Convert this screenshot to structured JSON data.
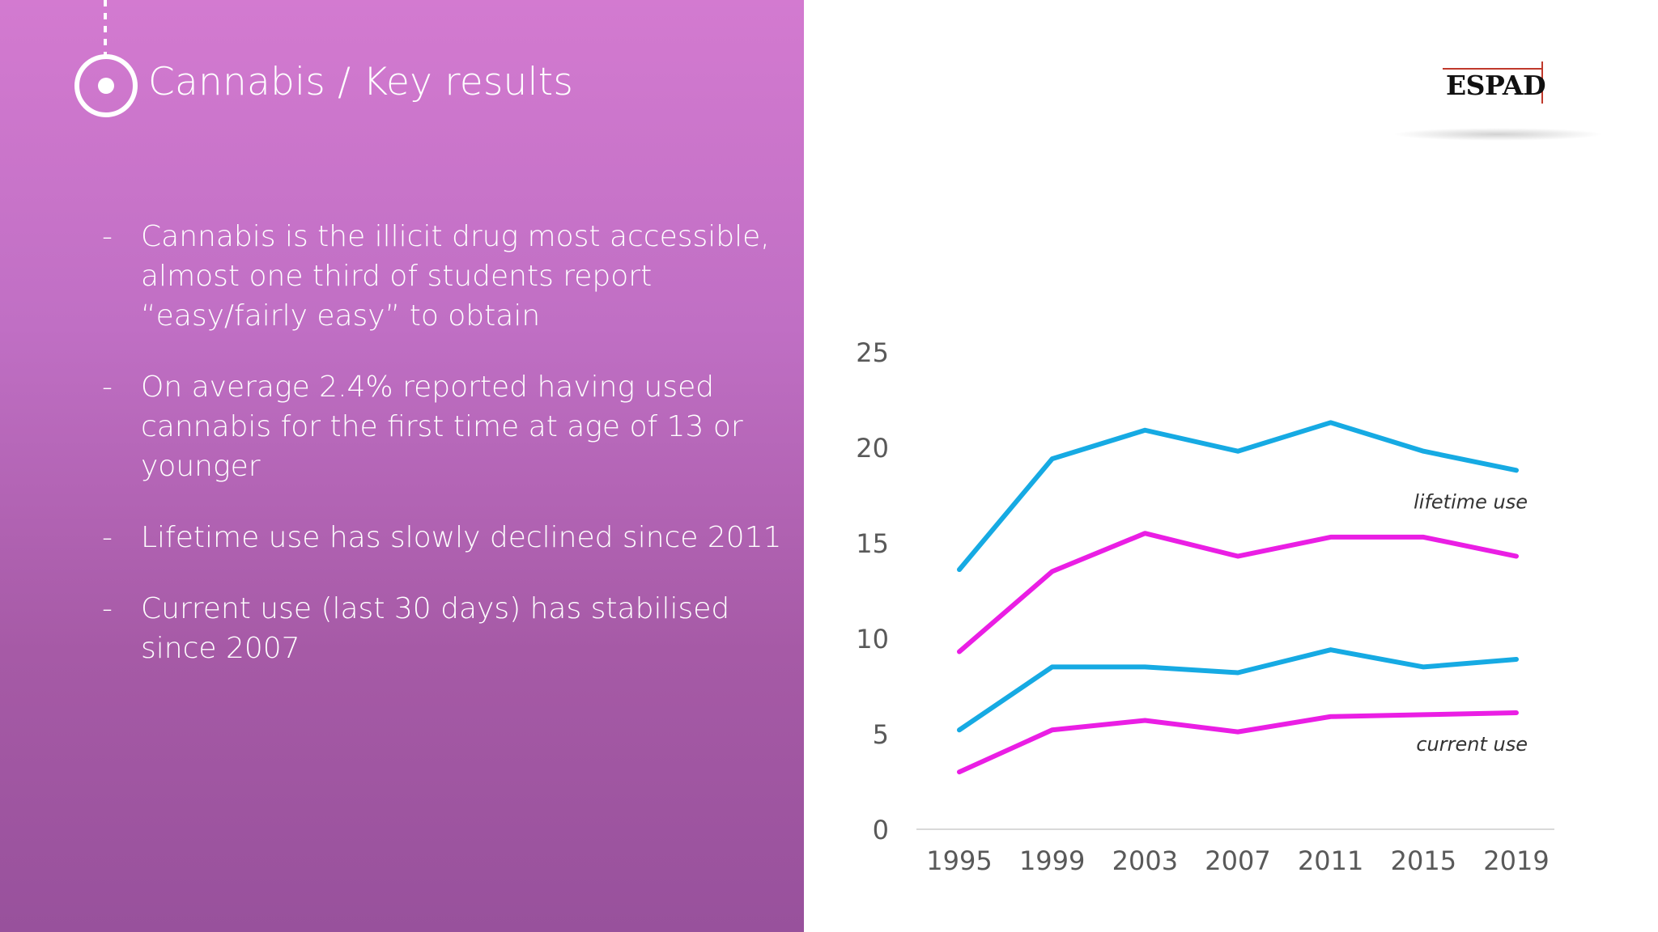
{
  "slide": {
    "title": "Cannabis / Key results",
    "bullet_marker": "-",
    "bullets": [
      "Cannabis is the illicit drug most accessible, almost one third of students report “easy/fairly easy” to obtain",
      "On average 2.4% reported having used cannabis for the first time at age of 13 or younger",
      "Lifetime use has slowly declined since 2011",
      "Current use (last 30 days) has stabilised since 2007"
    ]
  },
  "logo": {
    "text": "ESPAD",
    "accent_color": "#c0392b"
  },
  "colors": {
    "panel_top": "#d37ad0",
    "panel_bottom": "#98519c",
    "cyan": "#16aae3",
    "magenta": "#ea1ee4",
    "axis": "#d9d9d9",
    "tick_text": "#595959"
  },
  "chart_data": {
    "type": "line",
    "categories": [
      "1995",
      "1999",
      "2003",
      "2007",
      "2011",
      "2015",
      "2019"
    ],
    "ylim": [
      0,
      25
    ],
    "yticks": [
      "0",
      "5",
      "10",
      "15",
      "20",
      "25"
    ],
    "series": [
      {
        "color": "#16aae3",
        "values": [
          13.6,
          19.4,
          20.9,
          19.8,
          21.3,
          19.8,
          18.8
        ]
      },
      {
        "color": "#ea1ee4",
        "values": [
          9.3,
          13.5,
          15.5,
          14.3,
          15.3,
          15.3,
          14.3
        ]
      },
      {
        "color": "#16aae3",
        "values": [
          5.2,
          8.5,
          8.5,
          8.2,
          9.4,
          8.5,
          8.9
        ]
      },
      {
        "color": "#ea1ee4",
        "values": [
          3.0,
          5.2,
          5.7,
          5.1,
          5.9,
          6.0,
          6.1
        ]
      }
    ],
    "annotations": [
      {
        "text": "lifetime use",
        "anchor_value": 16.8
      },
      {
        "text": "current use",
        "anchor_value": 4.1
      }
    ],
    "grid": false,
    "legend": "none"
  }
}
